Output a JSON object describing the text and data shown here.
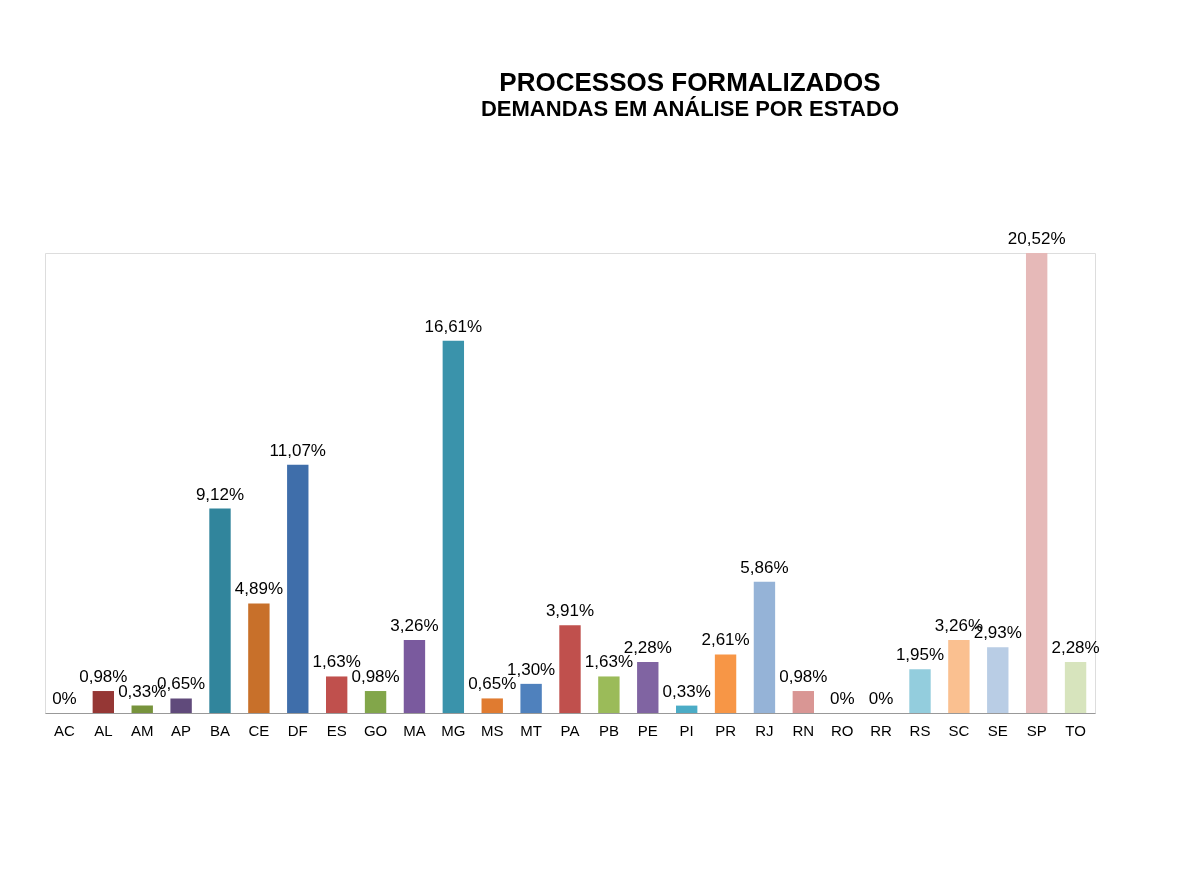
{
  "chart_data": {
    "type": "bar",
    "title": "PROCESSOS FORMALIZADOS",
    "subtitle": "DEMANDAS EM ANÁLISE POR ESTADO",
    "categories": [
      "AC",
      "AL",
      "AM",
      "AP",
      "BA",
      "CE",
      "DF",
      "ES",
      "GO",
      "MA",
      "MG",
      "MS",
      "MT",
      "PA",
      "PB",
      "PE",
      "PI",
      "PR",
      "RJ",
      "RN",
      "RO",
      "RR",
      "RS",
      "SC",
      "SE",
      "SP",
      "TO"
    ],
    "values": [
      0,
      0.98,
      0.33,
      0.65,
      9.12,
      4.89,
      11.07,
      1.63,
      0.98,
      3.26,
      16.61,
      0.65,
      1.3,
      3.91,
      1.63,
      2.28,
      0.33,
      2.61,
      5.86,
      0.98,
      0,
      0,
      1.95,
      3.26,
      2.93,
      20.52,
      2.28
    ],
    "value_labels": [
      "0%",
      "0,98%",
      "0,33%",
      "0,65%",
      "9,12%",
      "4,89%",
      "11,07%",
      "1,63%",
      "0,98%",
      "3,26%",
      "16,61%",
      "0,65%",
      "1,30%",
      "3,91%",
      "1,63%",
      "2,28%",
      "0,33%",
      "2,61%",
      "5,86%",
      "0,98%",
      "0%",
      "0%",
      "1,95%",
      "3,26%",
      "2,93%",
      "20,52%",
      "2,28%"
    ],
    "colors": [
      "#1f497d",
      "#953735",
      "#77933c",
      "#604a7b",
      "#31859c",
      "#c8702a",
      "#3f6eaa",
      "#c0504d",
      "#82a64a",
      "#7a5a9e",
      "#3a93ab",
      "#e07b30",
      "#4f81bd",
      "#c0504d",
      "#9bbb59",
      "#8064a2",
      "#4bacc6",
      "#f79646",
      "#95b3d7",
      "#d99694",
      "#c3d69b",
      "#b3a2c7",
      "#93cddd",
      "#fac090",
      "#b9cde5",
      "#e6b9b8",
      "#d7e4bd"
    ]
  }
}
